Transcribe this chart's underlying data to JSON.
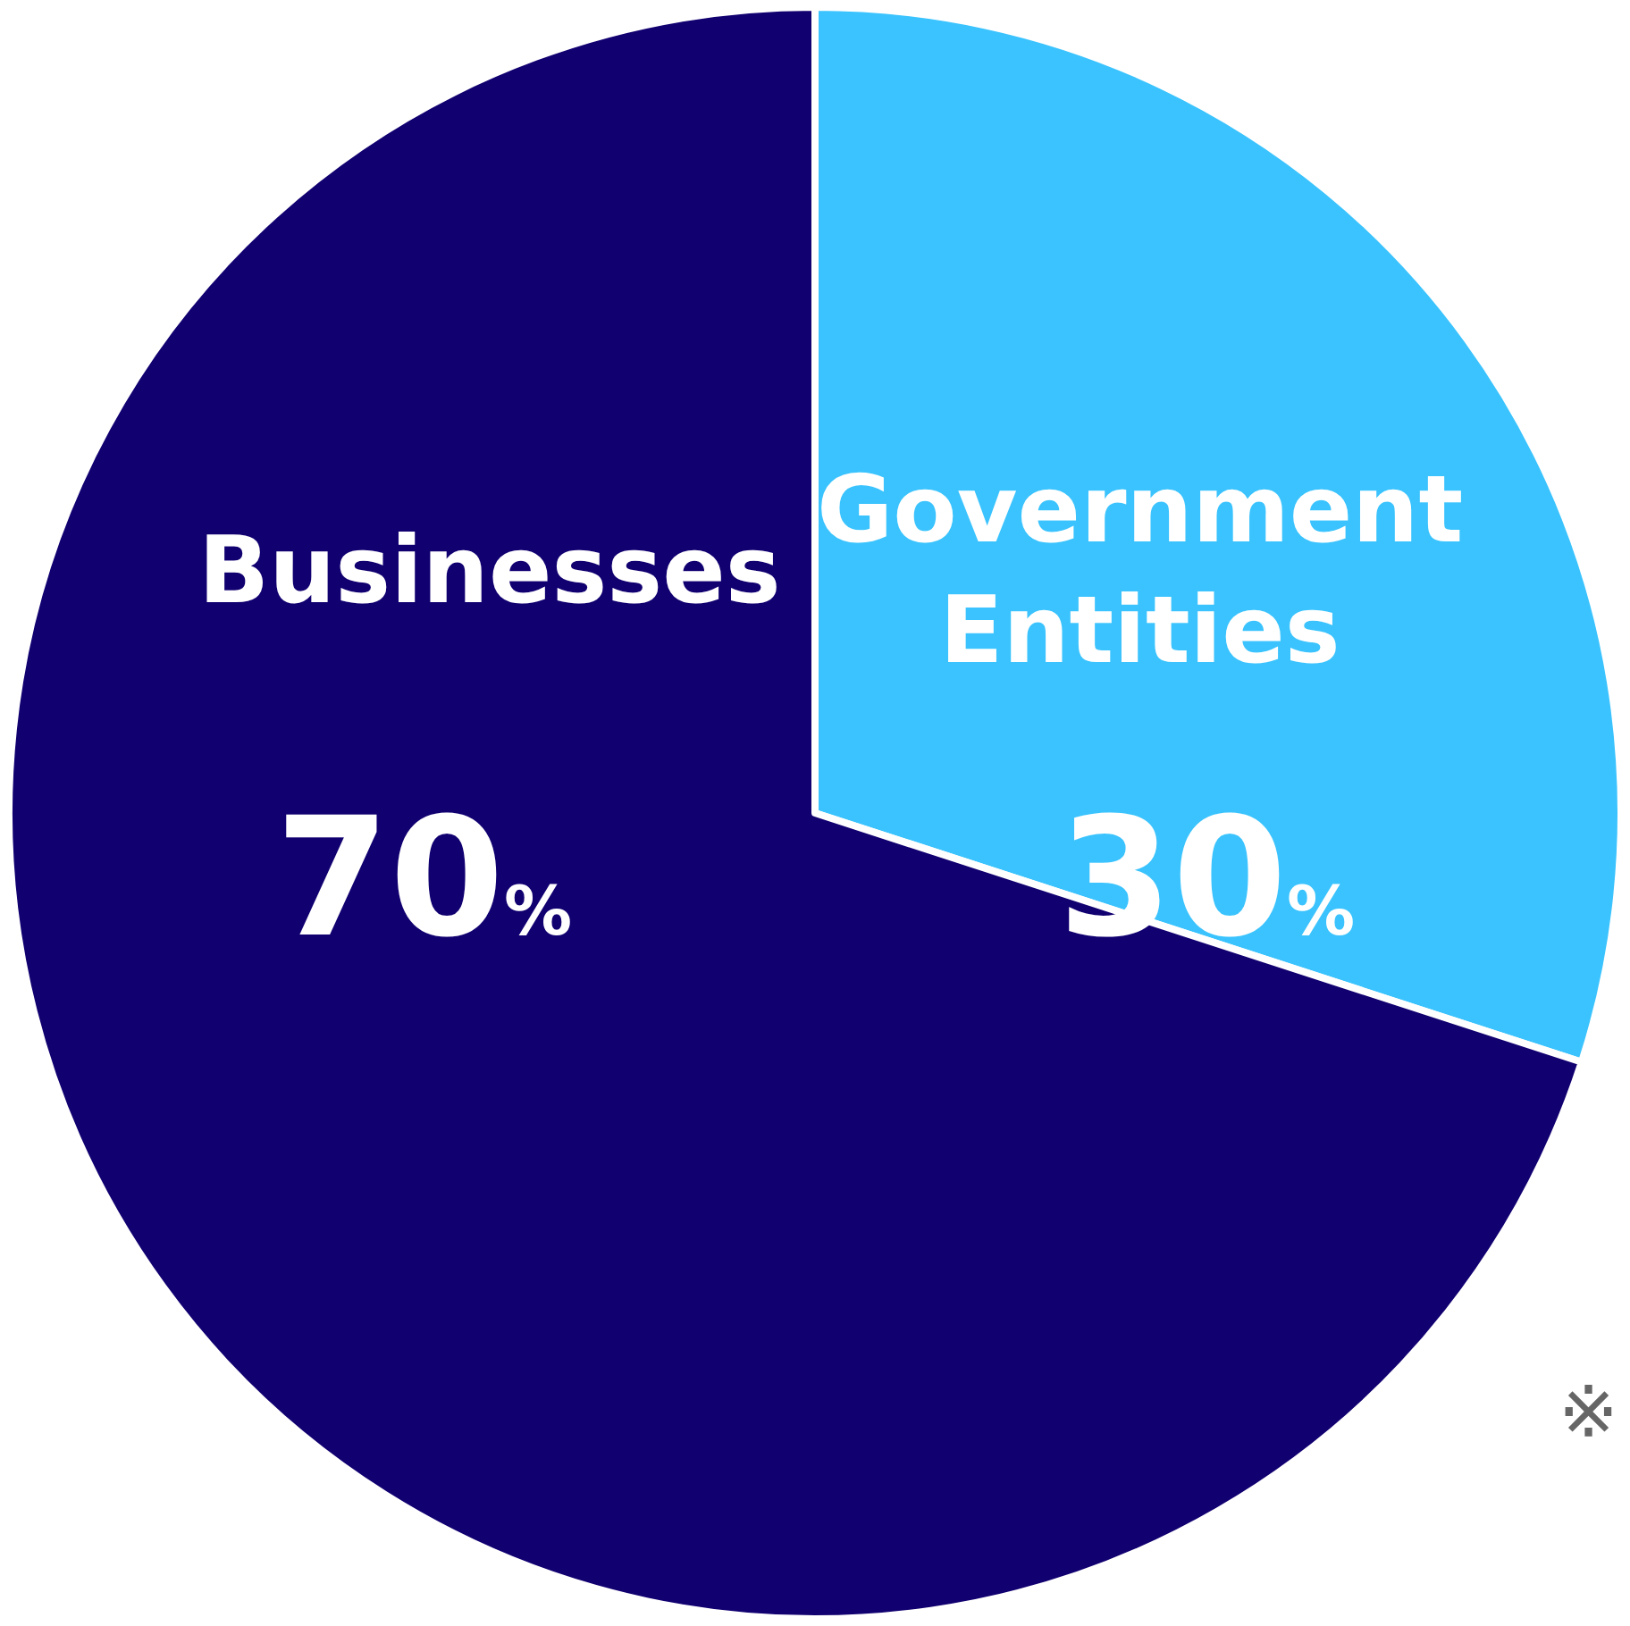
{
  "chart_data": {
    "type": "pie",
    "categories": [
      "Government Entities",
      "Businesses"
    ],
    "values": [
      30,
      70
    ],
    "colors": [
      "#3ac3fe",
      "#110070"
    ],
    "value_labels": [
      "30%",
      "70%"
    ],
    "legend": false,
    "annotations": [
      "※"
    ]
  }
}
